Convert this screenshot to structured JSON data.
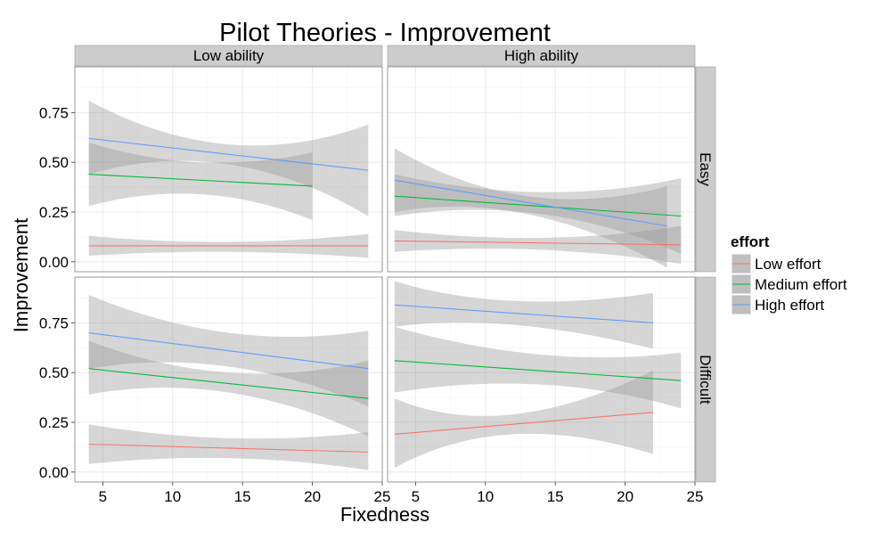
{
  "chart_data": {
    "type": "line",
    "title": "Pilot Theories - Improvement",
    "xlabel": "Fixedness",
    "ylabel": "Improvement",
    "xlim": [
      3,
      25
    ],
    "ylim": [
      -0.05,
      0.98
    ],
    "x_ticks": [
      5,
      10,
      15,
      20,
      25
    ],
    "x_tick_labels": [
      "5",
      "10",
      "15",
      "20",
      "25"
    ],
    "y_ticks": [
      0,
      0.25,
      0.5,
      0.75
    ],
    "y_tick_labels": [
      "0.00",
      "0.25",
      "0.50",
      "0.75"
    ],
    "grid": true,
    "col_facets": [
      "Low ability",
      "High ability"
    ],
    "row_facets": [
      "Easy",
      "Difficult"
    ],
    "legend": {
      "title": "effort",
      "position": "right",
      "items": [
        {
          "label": "Low effort",
          "color": "#F8766D"
        },
        {
          "label": "Medium effort",
          "color": "#00BA38"
        },
        {
          "label": "High effort",
          "color": "#619CFF"
        }
      ]
    },
    "band_color": "#999999",
    "panels": [
      {
        "col": "Low ability",
        "row": "Easy",
        "series": [
          {
            "name": "Low effort",
            "x": [
              4,
              24
            ],
            "y": [
              0.08,
              0.08
            ],
            "ci_x": [
              4,
              14,
              24
            ],
            "ci_lo": [
              0.03,
              0.05,
              0.02
            ],
            "ci_hi": [
              0.13,
              0.1,
              0.14
            ]
          },
          {
            "name": "Medium effort",
            "x": [
              4,
              20
            ],
            "y": [
              0.44,
              0.38
            ],
            "ci_x": [
              4,
              12,
              20
            ],
            "ci_lo": [
              0.28,
              0.34,
              0.21
            ],
            "ci_hi": [
              0.6,
              0.5,
              0.55
            ]
          },
          {
            "name": "High effort",
            "x": [
              4,
              24
            ],
            "y": [
              0.62,
              0.46
            ],
            "ci_x": [
              4,
              14,
              24
            ],
            "ci_lo": [
              0.44,
              0.49,
              0.23
            ],
            "ci_hi": [
              0.81,
              0.59,
              0.69
            ]
          }
        ]
      },
      {
        "col": "High ability",
        "row": "Easy",
        "series": [
          {
            "name": "Low effort",
            "x": [
              3.5,
              24
            ],
            "y": [
              0.105,
              0.085
            ],
            "ci_x": [
              3.5,
              14,
              24
            ],
            "ci_lo": [
              0.05,
              0.06,
              -0.01
            ],
            "ci_hi": [
              0.16,
              0.12,
              0.18
            ]
          },
          {
            "name": "Medium effort",
            "x": [
              3.5,
              24
            ],
            "y": [
              0.33,
              0.23
            ],
            "ci_x": [
              3.5,
              14,
              24
            ],
            "ci_lo": [
              0.23,
              0.24,
              0.04
            ],
            "ci_hi": [
              0.44,
              0.35,
              0.42
            ]
          },
          {
            "name": "High effort",
            "x": [
              3.5,
              23
            ],
            "y": [
              0.41,
              0.18
            ],
            "ci_x": [
              3.5,
              13,
              23
            ],
            "ci_lo": [
              0.25,
              0.24,
              -0.03
            ],
            "ci_hi": [
              0.57,
              0.33,
              0.38
            ]
          }
        ]
      },
      {
        "col": "Low ability",
        "row": "Difficult",
        "series": [
          {
            "name": "Low effort",
            "x": [
              4,
              24
            ],
            "y": [
              0.14,
              0.1
            ],
            "ci_x": [
              4,
              14,
              24
            ],
            "ci_lo": [
              0.04,
              0.07,
              0.01
            ],
            "ci_hi": [
              0.24,
              0.17,
              0.2
            ]
          },
          {
            "name": "Medium effort",
            "x": [
              4,
              24
            ],
            "y": [
              0.52,
              0.37
            ],
            "ci_x": [
              4,
              14,
              24
            ],
            "ci_lo": [
              0.39,
              0.4,
              0.18
            ],
            "ci_hi": [
              0.66,
              0.5,
              0.56
            ]
          },
          {
            "name": "High effort",
            "x": [
              4,
              24
            ],
            "y": [
              0.7,
              0.52
            ],
            "ci_x": [
              4,
              14,
              24
            ],
            "ci_lo": [
              0.52,
              0.53,
              0.33
            ],
            "ci_hi": [
              0.89,
              0.7,
              0.71
            ]
          }
        ]
      },
      {
        "col": "High ability",
        "row": "Difficult",
        "series": [
          {
            "name": "Low effort",
            "x": [
              3.5,
              22
            ],
            "y": [
              0.19,
              0.3
            ],
            "ci_x": [
              3.5,
              12,
              22
            ],
            "ci_lo": [
              0.02,
              0.19,
              0.09
            ],
            "ci_hi": [
              0.37,
              0.29,
              0.51
            ]
          },
          {
            "name": "Medium effort",
            "x": [
              3.5,
              24
            ],
            "y": [
              0.56,
              0.46
            ],
            "ci_x": [
              3.5,
              14,
              24
            ],
            "ci_lo": [
              0.4,
              0.44,
              0.32
            ],
            "ci_hi": [
              0.73,
              0.59,
              0.6
            ]
          },
          {
            "name": "High effort",
            "x": [
              3.5,
              22
            ],
            "y": [
              0.84,
              0.75
            ],
            "ci_x": [
              3.5,
              12,
              22
            ],
            "ci_lo": [
              0.73,
              0.74,
              0.62
            ],
            "ci_hi": [
              0.96,
              0.86,
              0.9
            ]
          }
        ]
      }
    ]
  }
}
